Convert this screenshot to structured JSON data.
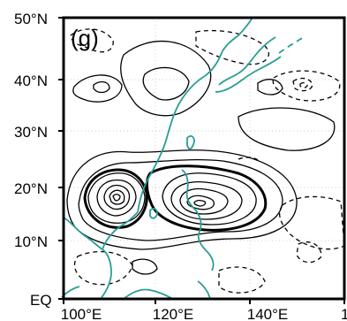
{
  "panel_label": "(g)",
  "map": {
    "lat_ticks": [
      "50°N",
      "40°N",
      "30°N",
      "20°N",
      "10°N",
      "EQ"
    ],
    "lon_ticks": [
      "100°E",
      "120°E",
      "140°E"
    ],
    "lon_ticks_partial": [
      "1"
    ],
    "extent": {
      "lon": [
        100,
        160
      ],
      "lat": [
        0,
        50
      ]
    },
    "grid": true,
    "coastline_color": "#2a9d96",
    "contour_color": "#000000",
    "contours": {
      "positive": "solid",
      "negative": "dashed",
      "centers_positive": [
        {
          "name": "core-west",
          "lon": 111,
          "lat": 18
        },
        {
          "name": "core-east",
          "lon": 122,
          "lat": 17
        }
      ]
    }
  }
}
